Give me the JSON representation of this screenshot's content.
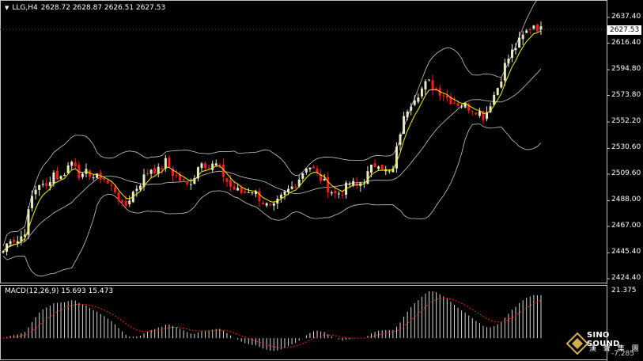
{
  "header": {
    "symbol": "LLG,H4",
    "quote": "2628.72 2628.87 2626.51 2627.53"
  },
  "price_axis": {
    "ticks": [
      "2637.40",
      "2616.40",
      "2594.80",
      "2573.80",
      "2552.20",
      "2530.60",
      "2509.60",
      "2488.00",
      "2467.00",
      "2445.40",
      "2424.40"
    ],
    "current_price": "2627.53"
  },
  "macd": {
    "title": "MACD(12,26,9) 15.693 15.473",
    "axis_top": "21.375",
    "axis_bottom": "-7.285"
  },
  "logo": {
    "name": "SINO SOUND",
    "chinese": "漢 聲 集 團"
  },
  "colors": {
    "bull": "#e8e8c8",
    "bear": "#ff1a1a",
    "ma_fast": "#f0f000",
    "bands": "#c8c8c8",
    "signal": "#ff2020",
    "histogram": "#d8d8d8"
  },
  "chart_data": {
    "type": "candlestick",
    "timeframe": "H4",
    "y_min": 2424.4,
    "y_max": 2637.4,
    "close_path": [
      2447,
      2458,
      2455,
      2462,
      2490,
      2503,
      2497,
      2512,
      2505,
      2515,
      2522,
      2505,
      2512,
      2506,
      2508,
      2500,
      2496,
      2480,
      2492,
      2500,
      2508,
      2515,
      2512,
      2520,
      2510,
      2505,
      2500,
      2508,
      2522,
      2515,
      2518,
      2510,
      2500,
      2496,
      2494,
      2498,
      2492,
      2485,
      2480,
      2488,
      2495,
      2500,
      2508,
      2518,
      2512,
      2505,
      2498,
      2493,
      2496,
      2502,
      2500,
      2505,
      2514,
      2520,
      2512,
      2510,
      2542,
      2562,
      2572,
      2578,
      2585,
      2580,
      2576,
      2571,
      2568,
      2566,
      2564,
      2562,
      2556,
      2570,
      2582,
      2600,
      2610,
      2618,
      2626,
      2632,
      2627
    ]
  }
}
